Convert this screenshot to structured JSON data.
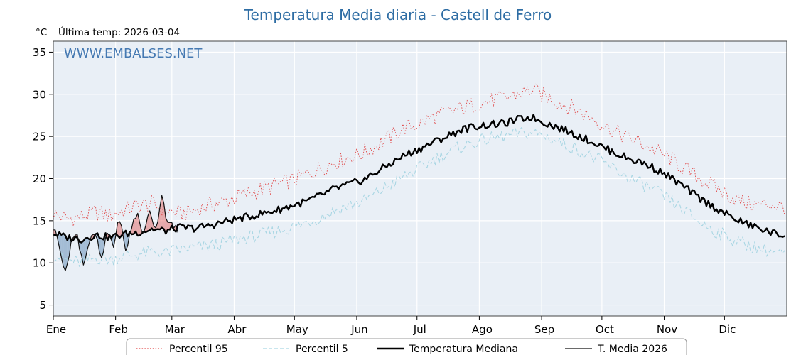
{
  "header": {
    "unit": "°C",
    "last_temp": "Última temp: 2026-03-04"
  },
  "watermark": "WWW.EMBALSES.NET",
  "chart_data": {
    "type": "line",
    "title": "Temperatura Media diaria - Castell de Ferro",
    "ylabel": "°C",
    "ylim": [
      3.7,
      36.3
    ],
    "y_ticks": [
      5,
      10,
      15,
      20,
      25,
      30,
      35
    ],
    "x_tick_labels": [
      "Ene",
      "Feb",
      "Mar",
      "Abr",
      "May",
      "Jun",
      "Jul",
      "Ago",
      "Sep",
      "Oct",
      "Nov",
      "Dic"
    ],
    "month_start_days": [
      0,
      31,
      59,
      90,
      120,
      151,
      181,
      212,
      243,
      273,
      304,
      334
    ],
    "days_in_year": 365,
    "grid": true,
    "legend_position": "bottom",
    "plot_bg": "#e9eff6",
    "grid_color": "#ffffff",
    "fill_above_color": "rgba(225,100,95,0.50)",
    "fill_below_color": "rgba(105,145,185,0.55)",
    "series": [
      {
        "name": "Percentil 95",
        "color": "#e04545",
        "dash": "1.5 2.3",
        "step_days": 7,
        "jitter": 1.0,
        "values": [
          15.8,
          15.2,
          15.5,
          16.0,
          15.6,
          16.2,
          16.8,
          17.0,
          16.2,
          15.8,
          16.2,
          16.8,
          17.2,
          17.8,
          18.3,
          18.8,
          19.3,
          19.8,
          20.5,
          21.2,
          22.0,
          22.5,
          23.0,
          24.0,
          25.0,
          26.0,
          26.5,
          27.3,
          27.8,
          28.3,
          28.8,
          29.2,
          29.5,
          30.0,
          30.5,
          29.8,
          29.0,
          28.3,
          27.5,
          26.5,
          25.5,
          24.8,
          24.0,
          23.2,
          22.2,
          21.0,
          20.0,
          19.0,
          18.0,
          17.2,
          16.8,
          17.0,
          16.5
        ]
      },
      {
        "name": "Percentil 5",
        "color": "#a9d6e3",
        "dash": "5 3",
        "step_days": 7,
        "jitter": 0.8,
        "values": [
          11.0,
          10.3,
          10.0,
          10.6,
          10.4,
          10.8,
          11.0,
          11.3,
          11.2,
          11.6,
          11.8,
          12.0,
          12.3,
          12.8,
          13.1,
          13.4,
          13.8,
          14.2,
          14.8,
          15.4,
          16.2,
          16.8,
          17.3,
          18.3,
          19.3,
          20.3,
          21.2,
          22.2,
          23.0,
          23.8,
          24.3,
          24.7,
          25.0,
          25.3,
          25.5,
          25.0,
          24.3,
          23.6,
          22.8,
          22.0,
          21.0,
          20.0,
          19.2,
          18.3,
          17.2,
          16.0,
          14.8,
          13.8,
          13.0,
          12.3,
          11.8,
          11.4,
          11.0
        ]
      },
      {
        "name": "Temperatura Mediana",
        "color": "#000000",
        "dash": "",
        "step_days": 7,
        "jitter": 0.45,
        "values": [
          13.5,
          13.0,
          12.8,
          13.3,
          13.0,
          13.4,
          13.6,
          14.0,
          13.8,
          14.2,
          14.1,
          14.4,
          14.8,
          15.2,
          15.5,
          15.9,
          16.3,
          16.8,
          17.3,
          18.0,
          18.8,
          19.3,
          19.8,
          20.8,
          21.8,
          22.8,
          23.5,
          24.3,
          25.0,
          25.8,
          26.2,
          26.4,
          26.5,
          27.0,
          27.3,
          26.6,
          26.0,
          25.3,
          24.6,
          23.8,
          23.0,
          22.3,
          21.8,
          21.0,
          20.0,
          18.8,
          17.6,
          16.6,
          15.6,
          14.8,
          14.2,
          13.6,
          13.2
        ]
      },
      {
        "name": "T. Media 2026",
        "color": "#111111",
        "dash": "",
        "step_days": 3,
        "jitter": 0.5,
        "end_day": 62,
        "values": [
          14.2,
          12.3,
          8.6,
          12.8,
          13.2,
          9.9,
          12.6,
          13.3,
          10.3,
          13.6,
          12.1,
          15.4,
          11.2,
          14.4,
          15.8,
          13.2,
          16.4,
          13.9,
          18.2,
          14.6,
          14.2,
          14.0
        ]
      }
    ]
  }
}
